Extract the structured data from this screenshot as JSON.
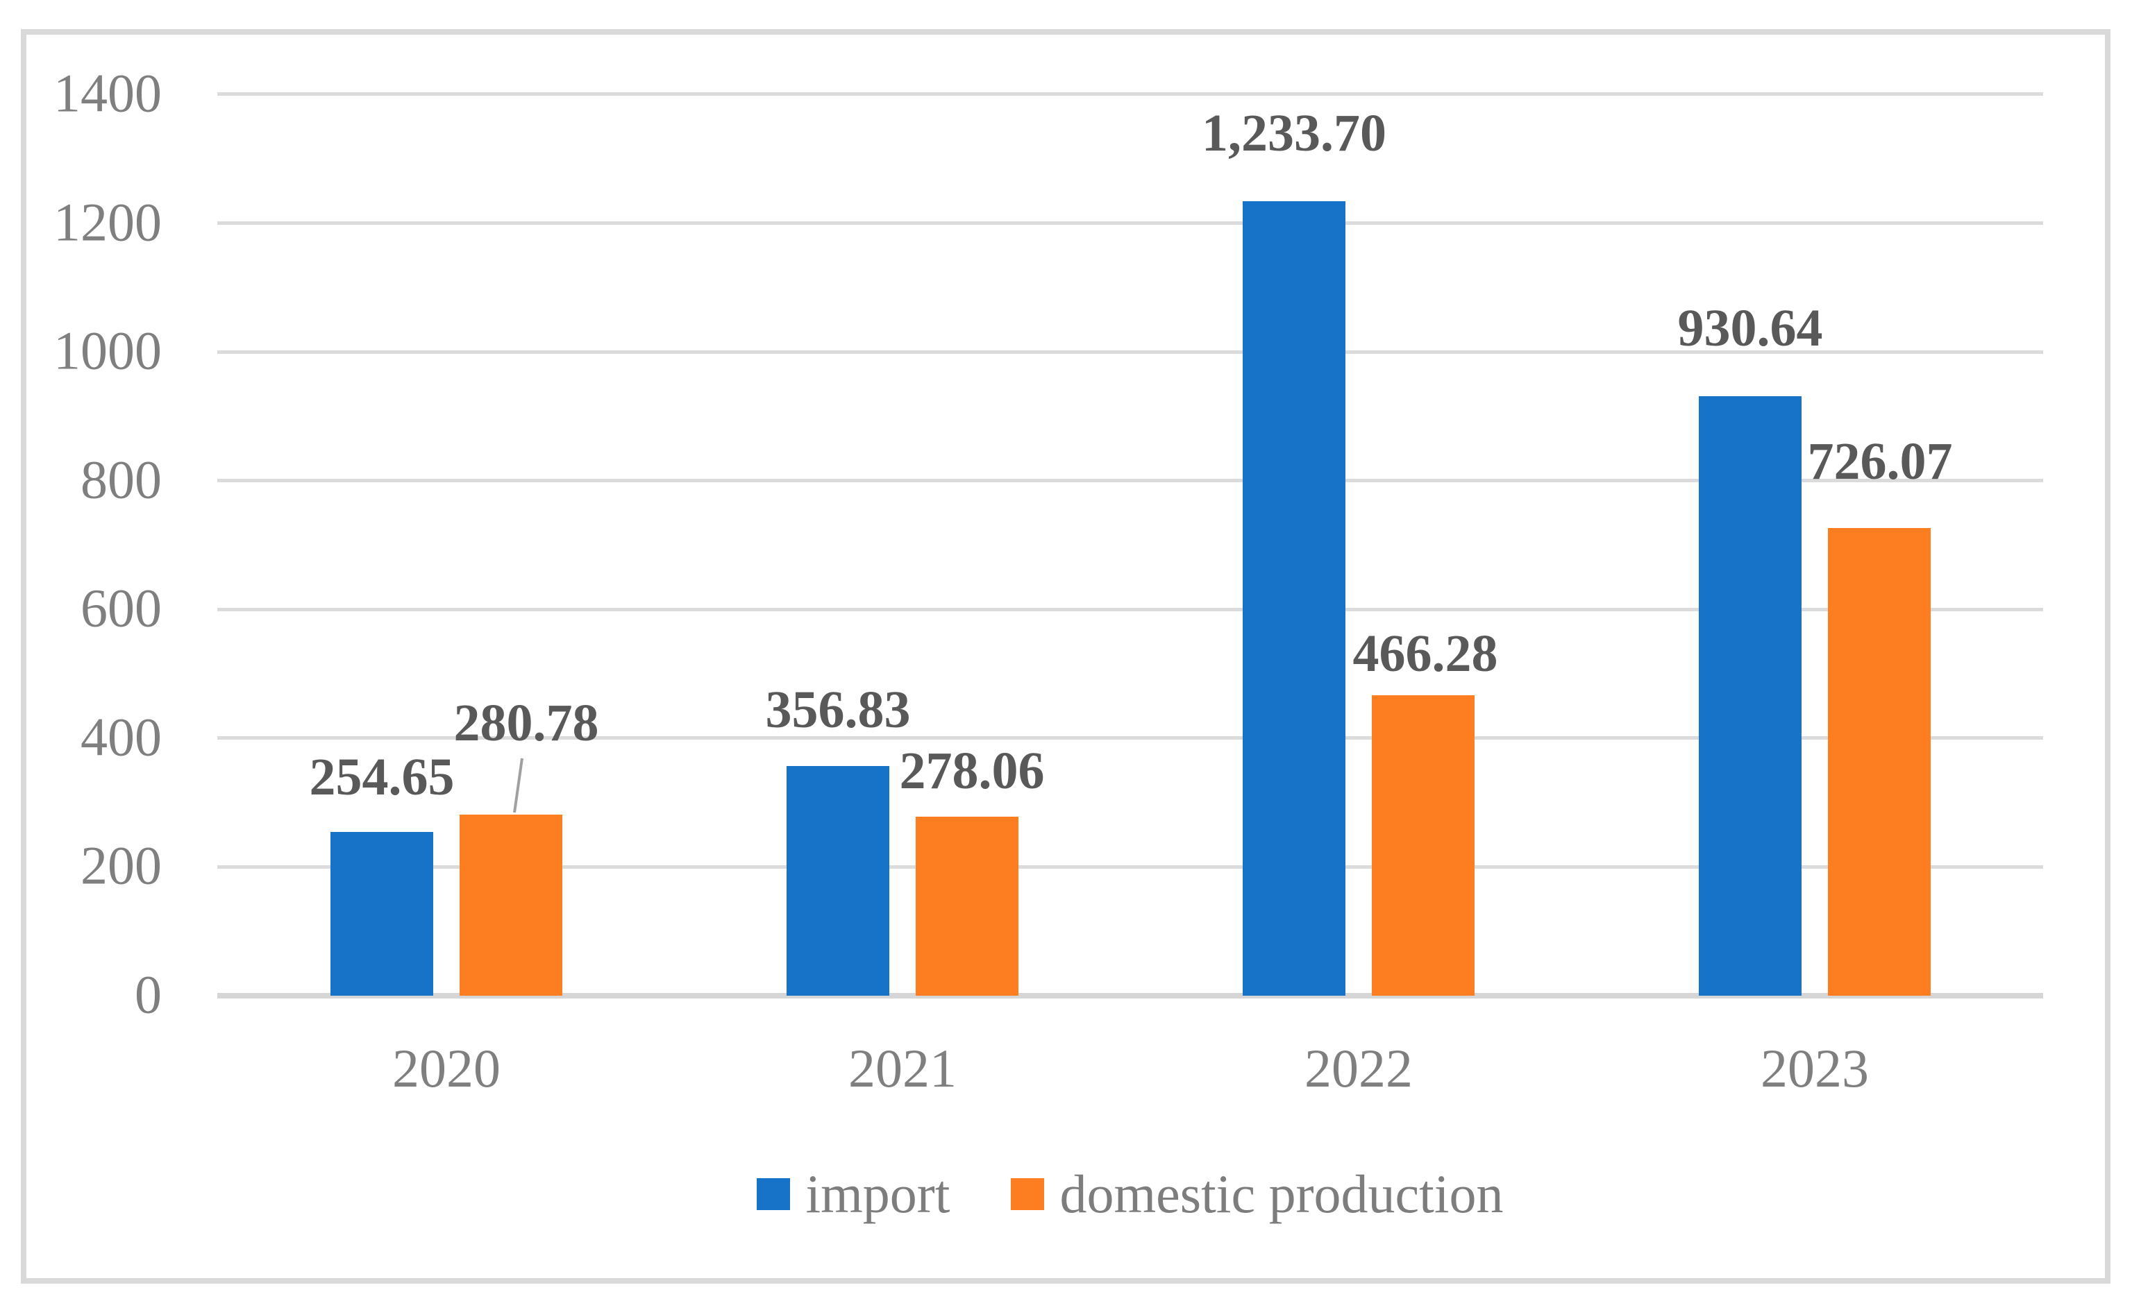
{
  "chart_data": {
    "type": "bar",
    "title": "",
    "xlabel": "",
    "ylabel": "",
    "categories": [
      "2020",
      "2021",
      "2022",
      "2023"
    ],
    "series": [
      {
        "name": "import",
        "color": "#1773C7",
        "values": [
          254.65,
          356.83,
          1233.7,
          930.64
        ],
        "labels": [
          "254.65",
          "356.83",
          "1,233.70",
          "930.64"
        ]
      },
      {
        "name": "domestic production",
        "color": "#FD7E20",
        "values": [
          280.78,
          278.06,
          466.28,
          726.07
        ],
        "labels": [
          "280.78",
          "278.06",
          "466.28",
          "726.07"
        ]
      }
    ],
    "y_axis": {
      "min": 0,
      "max": 1400,
      "tick_step": 200,
      "ticks": [
        "0",
        "200",
        "400",
        "600",
        "800",
        "1000",
        "1200",
        "1400"
      ],
      "grid": true
    },
    "legend": {
      "position": "bottom"
    },
    "annotations": {
      "leader_line": {
        "attached_to_label": "280.78",
        "series": "domestic production",
        "category": "2020"
      }
    },
    "colors": {
      "gridline": "#DBDBDB",
      "axis_line": "#D6D6D6",
      "frame_border": "#D9D9D9",
      "tick_text": "#7F7F7F",
      "data_label_text": "#595959",
      "legend_text": "#7D7D7D",
      "leader_line": "#A0A0A0"
    }
  }
}
